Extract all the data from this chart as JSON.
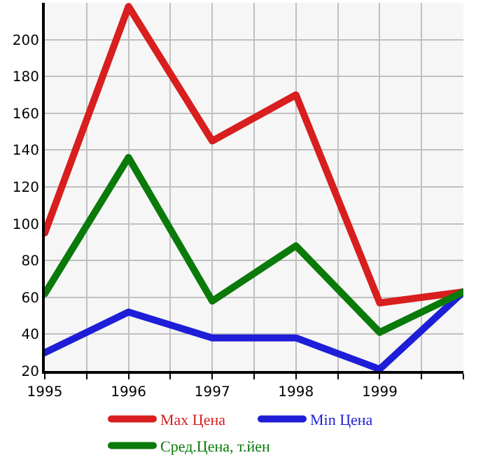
{
  "chart_data": {
    "type": "line",
    "x": [
      1995,
      1996,
      1997,
      1998,
      1999,
      2000
    ],
    "series": [
      {
        "name": "Max Цена",
        "color": "#d81e1e",
        "values": [
          95,
          218,
          145,
          170,
          57,
          63
        ]
      },
      {
        "name": "Min Цена",
        "color": "#1e1ed8",
        "values": [
          30,
          52,
          38,
          38,
          21,
          63
        ]
      },
      {
        "name": "Сред.Цена, т.йен",
        "color": "#0a7a0a",
        "values": [
          62,
          136,
          58,
          88,
          41,
          63
        ]
      }
    ],
    "xlim": [
      1995,
      2000
    ],
    "xticks": [
      1995,
      {
        "value": 1995.5,
        "label": null
      },
      1996,
      {
        "value": 1996.5,
        "label": null
      },
      1997,
      {
        "value": 1997.5,
        "label": null
      },
      1998,
      {
        "value": 1998.5,
        "label": null
      },
      1999,
      {
        "value": 1999.5,
        "label": null
      },
      {
        "value": 2000,
        "label": null
      }
    ],
    "ylim": [
      20,
      220
    ],
    "yticks": [
      20,
      40,
      60,
      80,
      100,
      120,
      140,
      160,
      180,
      200,
      {
        "value": 220,
        "label": null
      }
    ],
    "grid": true,
    "legend": "bottom",
    "marker": "none",
    "line_style": "solid"
  }
}
